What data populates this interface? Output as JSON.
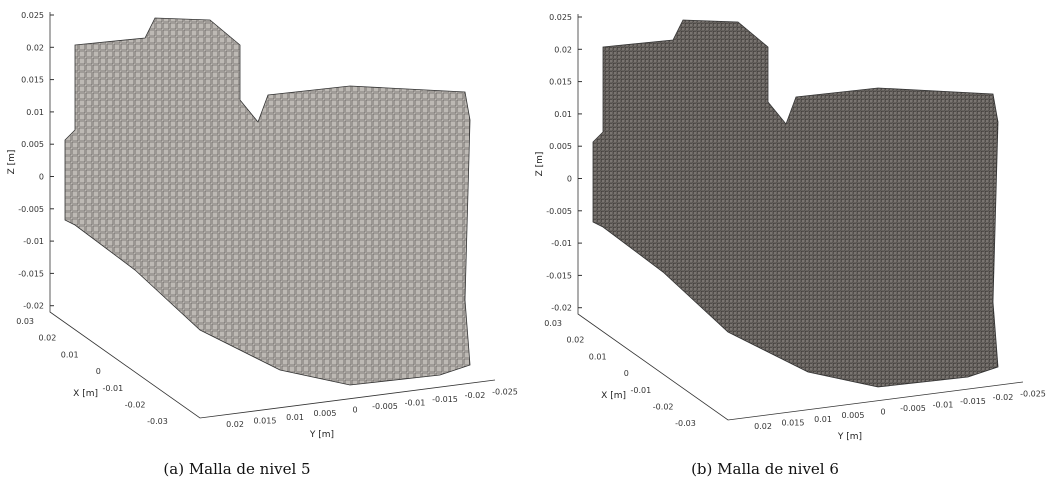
{
  "panels": [
    {
      "z_label": "Z [m]",
      "x_label": "X [m]",
      "y_label": "Y [m]",
      "z_ticks": [
        "0.025",
        "0.02",
        "0.015",
        "0.01",
        "0.005",
        "0",
        "-0.005",
        "-0.01",
        "-0.015",
        "-0.02"
      ],
      "x_ticks": [
        "0.03",
        "0.02",
        "0.01",
        "0",
        "-0.01",
        "-0.02",
        "-0.03"
      ],
      "y_ticks": [
        "0.02",
        "0.015",
        "0.01",
        "0.005",
        "0",
        "-0.005",
        "-0.01",
        "-0.015",
        "-0.02",
        "-0.025"
      ],
      "caption": "(a)  Malla de nivel 5"
    },
    {
      "z_label": "Z [m]",
      "x_label": "X [m]",
      "y_label": "Y [m]",
      "z_ticks": [
        "0.025",
        "0.02",
        "0.015",
        "0.01",
        "0.005",
        "0",
        "-0.005",
        "-0.01",
        "-0.015",
        "-0.02"
      ],
      "x_ticks": [
        "0.03",
        "0.02",
        "0.01",
        "0",
        "-0.01",
        "-0.02",
        "-0.03"
      ],
      "y_ticks": [
        "0.02",
        "0.015",
        "0.01",
        "0.005",
        "0",
        "-0.005",
        "-0.01",
        "-0.015",
        "-0.02",
        "-0.025"
      ],
      "caption": "(b)  Malla de nivel 6"
    }
  ]
}
